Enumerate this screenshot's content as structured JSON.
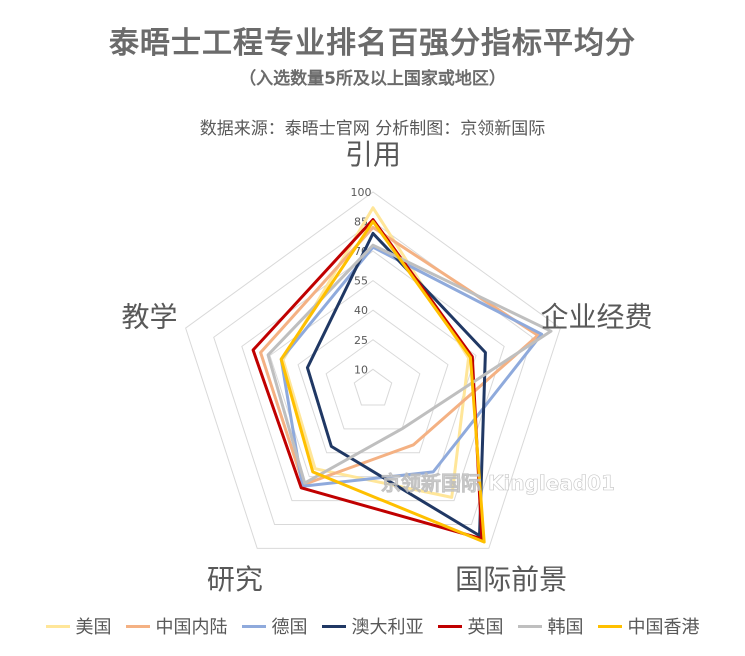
{
  "title": "泰晤士工程专业排名百强分指标平均分",
  "subtitle": "（入选数量5所及以上国家或地区）",
  "source": "数据来源：泰晤士官网  分析制图：京领新国际",
  "watermark": "京领新国际 Kinglead01",
  "chart_data": {
    "type": "radar",
    "axes": [
      "引用",
      "企业经费",
      "国际前景",
      "研究",
      "教学"
    ],
    "ticks": [
      10,
      25,
      40,
      55,
      70,
      85,
      100
    ],
    "range": [
      0,
      100
    ],
    "series": [
      {
        "name": "美国",
        "color": "#FFE699",
        "values": [
          92,
          51,
          68,
          50,
          48
        ]
      },
      {
        "name": "中国内陆",
        "color": "#F4B183",
        "values": [
          82,
          88,
          35,
          60,
          60
        ]
      },
      {
        "name": "德国",
        "color": "#8FAADC",
        "values": [
          72,
          90,
          52,
          61,
          49
        ]
      },
      {
        "name": "澳大利亚",
        "color": "#203864",
        "values": [
          79,
          60,
          92,
          36,
          35
        ]
      },
      {
        "name": "英国",
        "color": "#C00000",
        "values": [
          86,
          53,
          94,
          62,
          64
        ]
      },
      {
        "name": "韩国",
        "color": "#BFBFBF",
        "values": [
          73,
          95,
          25,
          59,
          56
        ]
      },
      {
        "name": "中国香港",
        "color": "#FFC000",
        "values": [
          85,
          52,
          96,
          52,
          49
        ]
      }
    ]
  }
}
